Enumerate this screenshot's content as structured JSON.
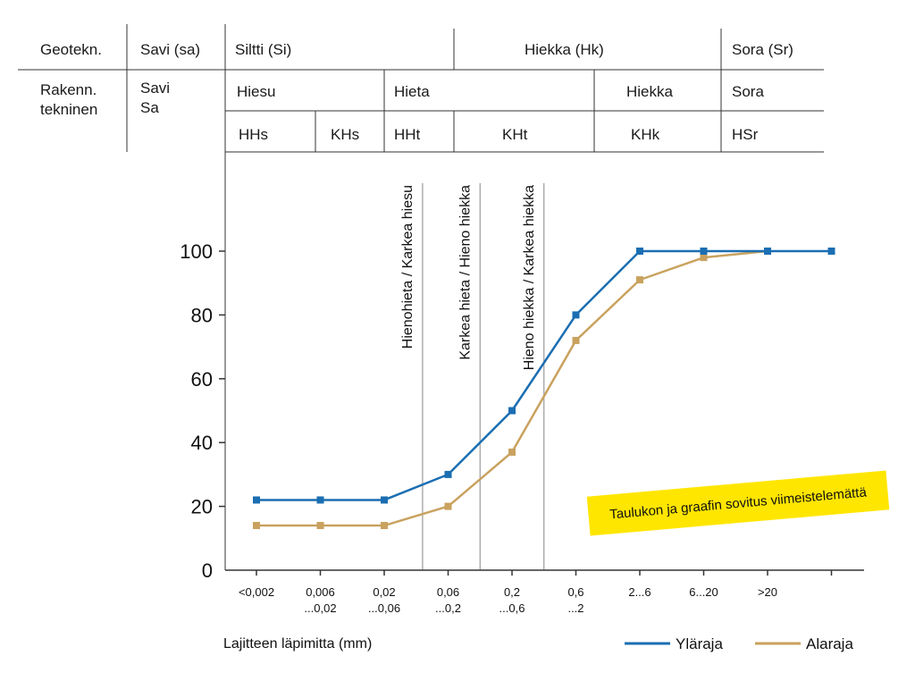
{
  "table": {
    "row1": {
      "header": "Geotekn.",
      "clay": "Savi (sa)",
      "silt": "Siltti (Si)",
      "sand": "Hiekka (Hk)",
      "gravel": "Sora (Sr)"
    },
    "row2": {
      "header_line1": "Rakenn.",
      "header_line2": "tekninen",
      "clay_line1": "Savi",
      "clay_line2": "Sa",
      "hiesu": "Hiesu",
      "hieta": "Hieta",
      "hiekka": "Hiekka",
      "sora": "Sora"
    },
    "row3": [
      "HHs",
      "KHs",
      "HHt",
      "KHt",
      "KHk",
      "HSr"
    ]
  },
  "note": "Taulukon ja graafin sovitus viimeistelemättä",
  "colors": {
    "upper": "#1b6eb2",
    "lower": "#c9a25f",
    "note_bg": "#ffe600",
    "divider": "#9a9a9a"
  },
  "chart_data": {
    "type": "line",
    "categories": [
      "<0,002",
      "0,006 ...0,02",
      "0,02 ...0,06",
      "0,06 ...0,2",
      "0,2 ...0,6",
      "0,6 ...2",
      "2...6",
      "6...20",
      ">20",
      ""
    ],
    "x_tick_lines": [
      [
        "<0,002"
      ],
      [
        "0,006",
        "...0,02"
      ],
      [
        "0,02",
        "...0,06"
      ],
      [
        "0,06",
        "...0,2"
      ],
      [
        "0,2",
        "...0,6"
      ],
      [
        "0,6",
        "...2"
      ],
      [
        "2...6"
      ],
      [
        "6...20"
      ],
      [
        ">20"
      ],
      []
    ],
    "series": [
      {
        "name": "Yläraja",
        "values": [
          22,
          22,
          22,
          30,
          50,
          80,
          100,
          100,
          100,
          100
        ]
      },
      {
        "name": "Alaraja",
        "values": [
          14,
          14,
          14,
          20,
          37,
          72,
          91,
          98,
          100,
          null
        ]
      }
    ],
    "yticks": [
      0,
      20,
      40,
      60,
      80,
      100
    ],
    "ylim": [
      0,
      100
    ],
    "xlabel": "Lajitteen läpimitta (mm)",
    "ylabel": "",
    "grid": false,
    "legend": "bottom-right",
    "dividers": [
      {
        "label": "Hienohieta / Karkea hiesu",
        "after_index": 2.6
      },
      {
        "label": "Karkea hieta / Hieno hiekka",
        "after_index": 3.5
      },
      {
        "label": "Hieno hiekka / Karkea hiekka",
        "after_index": 4.5
      }
    ]
  }
}
